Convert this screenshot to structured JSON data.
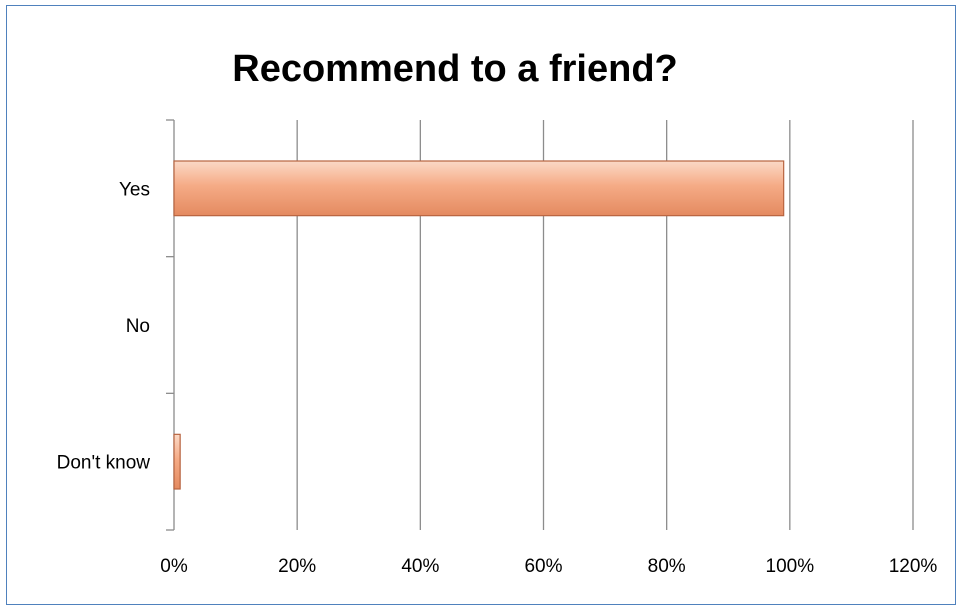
{
  "chart_data": {
    "type": "bar",
    "orientation": "horizontal",
    "title": "Recommend to a friend?",
    "categories": [
      "Yes",
      "No",
      "Don't know"
    ],
    "values": [
      0.99,
      0.0,
      0.01
    ],
    "xlim": [
      0,
      1.2
    ],
    "x_ticks": [
      "0%",
      "20%",
      "40%",
      "60%",
      "80%",
      "100%",
      "120%"
    ],
    "grid": "vertical",
    "legend": "none",
    "bar_color": "#f4a883",
    "bar_edge_color": "#b86440",
    "frame_color": "#4f81bd"
  }
}
